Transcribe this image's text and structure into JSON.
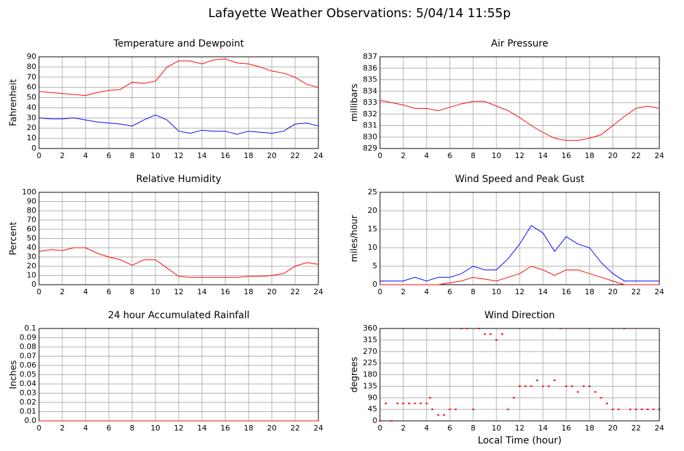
{
  "title": "Lafayette Weather Observations: 5/04/14 11:55p",
  "chart_data": [
    {
      "type": "line",
      "title": "Temperature and Dewpoint",
      "ylabel": "Fahrenheit",
      "x": [
        0,
        1,
        2,
        3,
        4,
        5,
        6,
        7,
        8,
        9,
        10,
        11,
        12,
        13,
        14,
        15,
        16,
        17,
        18,
        19,
        20,
        21,
        22,
        23,
        24
      ],
      "series": [
        {
          "color": "#ff0000",
          "values": [
            56,
            55,
            54,
            53,
            52,
            55,
            57,
            58,
            65,
            64,
            66,
            80,
            86,
            86,
            83,
            87,
            88,
            84,
            83,
            80,
            76,
            74,
            70,
            63,
            60
          ]
        },
        {
          "color": "#0000ff",
          "values": [
            30,
            29,
            29,
            30,
            28,
            26,
            25,
            24,
            22,
            28,
            33,
            28,
            17,
            15,
            18,
            17,
            17,
            14,
            17,
            16,
            15,
            17,
            24,
            25,
            22
          ]
        }
      ],
      "xlim": [
        0,
        24
      ],
      "xticks": [
        0,
        2,
        4,
        6,
        8,
        10,
        12,
        14,
        16,
        18,
        20,
        22,
        24
      ],
      "ylim": [
        0,
        90
      ],
      "yticks": [
        0,
        10,
        20,
        30,
        40,
        50,
        60,
        70,
        80,
        90
      ],
      "grid": true
    },
    {
      "type": "line",
      "title": "Air Pressure",
      "ylabel": "millibars",
      "x": [
        0,
        1,
        2,
        3,
        4,
        5,
        6,
        7,
        8,
        9,
        10,
        11,
        12,
        13,
        14,
        15,
        16,
        17,
        18,
        19,
        20,
        21,
        22,
        23,
        24
      ],
      "series": [
        {
          "color": "#ff0000",
          "values": [
            833.2,
            833.0,
            832.8,
            832.5,
            832.5,
            832.3,
            832.6,
            832.9,
            833.1,
            833.1,
            832.7,
            832.3,
            831.7,
            831.0,
            830.4,
            829.9,
            829.7,
            829.7,
            829.9,
            830.2,
            831.0,
            831.8,
            832.5,
            832.7,
            832.5
          ]
        }
      ],
      "xlim": [
        0,
        24
      ],
      "xticks": [
        0,
        2,
        4,
        6,
        8,
        10,
        12,
        14,
        16,
        18,
        20,
        22,
        24
      ],
      "ylim": [
        829,
        837
      ],
      "yticks": [
        829,
        830,
        831,
        832,
        833,
        834,
        835,
        836,
        837
      ],
      "grid": true
    },
    {
      "type": "line",
      "title": "Relative Humidity",
      "ylabel": "Percent",
      "x": [
        0,
        1,
        2,
        3,
        4,
        5,
        6,
        7,
        8,
        9,
        10,
        11,
        12,
        13,
        14,
        15,
        16,
        17,
        18,
        19,
        20,
        21,
        22,
        23,
        24
      ],
      "series": [
        {
          "color": "#ff0000",
          "values": [
            36,
            38,
            37,
            40,
            40,
            34,
            30,
            27,
            21,
            27,
            27,
            18,
            9,
            8,
            8,
            8,
            8,
            8,
            9,
            9,
            10,
            12,
            20,
            24,
            22
          ]
        }
      ],
      "xlim": [
        0,
        24
      ],
      "xticks": [
        0,
        2,
        4,
        6,
        8,
        10,
        12,
        14,
        16,
        18,
        20,
        22,
        24
      ],
      "ylim": [
        0,
        100
      ],
      "yticks": [
        0,
        10,
        20,
        30,
        40,
        50,
        60,
        70,
        80,
        90,
        100
      ],
      "grid": true
    },
    {
      "type": "line",
      "title": "Wind Speed and Peak Gust",
      "ylabel": "miles/hour",
      "x": [
        0,
        1,
        2,
        3,
        4,
        5,
        6,
        7,
        8,
        9,
        10,
        11,
        12,
        13,
        14,
        15,
        16,
        17,
        18,
        19,
        20,
        21,
        22,
        23,
        24
      ],
      "series": [
        {
          "color": "#0000ff",
          "values": [
            1,
            1,
            1,
            2,
            1,
            2,
            2,
            3,
            5,
            4,
            4,
            7,
            11,
            16,
            14,
            9,
            13,
            11,
            10,
            6,
            3,
            1,
            1,
            1,
            1
          ]
        },
        {
          "color": "#ff0000",
          "values": [
            0,
            0,
            0,
            0,
            0,
            0,
            0.5,
            1,
            2,
            1.5,
            1,
            2,
            3,
            5,
            4,
            2.5,
            4,
            4,
            3,
            2,
            1,
            0,
            0,
            0,
            0
          ]
        }
      ],
      "xlim": [
        0,
        24
      ],
      "xticks": [
        0,
        2,
        4,
        6,
        8,
        10,
        12,
        14,
        16,
        18,
        20,
        22,
        24
      ],
      "ylim": [
        0,
        25
      ],
      "yticks": [
        0,
        5,
        10,
        15,
        20,
        25
      ],
      "grid": true
    },
    {
      "type": "line",
      "title": "24 hour Accumulated Rainfall",
      "ylabel": "Inches",
      "x": [
        0,
        1,
        2,
        3,
        4,
        5,
        6,
        7,
        8,
        9,
        10,
        11,
        12,
        13,
        14,
        15,
        16,
        17,
        18,
        19,
        20,
        21,
        22,
        23,
        24
      ],
      "series": [
        {
          "color": "#ff0000",
          "values": [
            0,
            0,
            0,
            0,
            0,
            0,
            0,
            0,
            0,
            0,
            0,
            0,
            0,
            0,
            0,
            0,
            0,
            0,
            0,
            0,
            0,
            0,
            0,
            0,
            0
          ]
        }
      ],
      "xlim": [
        0,
        24
      ],
      "xticks": [
        0,
        2,
        4,
        6,
        8,
        10,
        12,
        14,
        16,
        18,
        20,
        22,
        24
      ],
      "ylim": [
        0,
        0.1
      ],
      "yticks": [
        {
          "value": 0,
          "label": "0.0"
        },
        0.01,
        0.02,
        0.03,
        0.04,
        0.05,
        0.06,
        0.07,
        0.08,
        0.09,
        0.1
      ],
      "grid": true
    },
    {
      "type": "scatter",
      "title": "Wind Direction",
      "ylabel": "degrees",
      "xlabel": "Local Time (hour)",
      "x": [
        0,
        0.5,
        1,
        1.5,
        2,
        2.5,
        3,
        3.5,
        4,
        4.3,
        4.5,
        5,
        5.5,
        6,
        6.5,
        7,
        7.5,
        8,
        8.5,
        9,
        9.5,
        10,
        10.5,
        11,
        11.5,
        12,
        12.5,
        13,
        13.5,
        14,
        14.5,
        15,
        15.5,
        16,
        16.5,
        17,
        17.5,
        18,
        18.5,
        19,
        19.5,
        20,
        20.5,
        21,
        21.5,
        22,
        22.5,
        23,
        23.5,
        24
      ],
      "series": [
        {
          "color": "#ff0000",
          "values": [
            0,
            68,
            0,
            68,
            68,
            68,
            68,
            68,
            68,
            90,
            45,
            23,
            23,
            45,
            45,
            360,
            360,
            45,
            360,
            338,
            338,
            315,
            338,
            45,
            90,
            135,
            135,
            135,
            158,
            135,
            135,
            158,
            360,
            135,
            135,
            113,
            135,
            135,
            113,
            90,
            68,
            45,
            45,
            360,
            45,
            45,
            45,
            45,
            45,
            45
          ]
        }
      ],
      "xlim": [
        0,
        24
      ],
      "xticks": [
        0,
        2,
        4,
        6,
        8,
        10,
        12,
        14,
        16,
        18,
        20,
        22,
        24
      ],
      "ylim": [
        0,
        360
      ],
      "yticks": [
        0,
        45,
        90,
        135,
        180,
        225,
        270,
        315,
        360
      ],
      "grid": true
    }
  ]
}
